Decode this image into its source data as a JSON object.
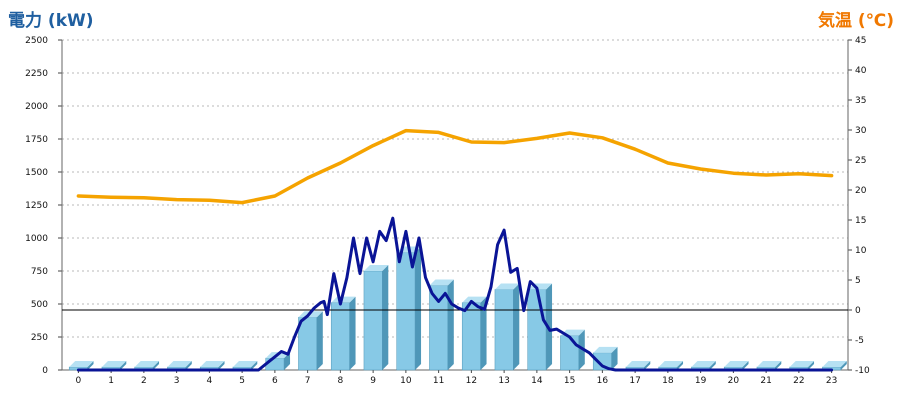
{
  "chart_data": {
    "type": "bar",
    "y_left_label": "電力 (kW)",
    "y_right_label": "気温 (℃)",
    "y_left_lim": [
      0,
      2500
    ],
    "y_left_ticks": [
      0,
      250,
      500,
      750,
      1000,
      1250,
      1500,
      1750,
      2000,
      2250,
      2500
    ],
    "y_right_lim": [
      -10,
      45
    ],
    "y_right_ticks": [
      -10,
      -5,
      0,
      5,
      10,
      15,
      20,
      25,
      30,
      35,
      40,
      45
    ],
    "x_ticks": [
      "0",
      "1",
      "2",
      "3",
      "4",
      "5",
      "6",
      "7",
      "8",
      "9",
      "10",
      "11",
      "12",
      "13",
      "14",
      "15",
      "16",
      "17",
      "18",
      "19",
      "20",
      "21",
      "22",
      "23"
    ],
    "grid": true,
    "colors": {
      "bars": "#87c9e6",
      "bars_dark": "#4f97b8",
      "power_line": "#0a1496",
      "temp_line": "#f5a300",
      "zero_line": "#000000"
    },
    "series": [
      {
        "kind": "bar",
        "axis": "left",
        "values": [
          0,
          0,
          0,
          0,
          0,
          0,
          90,
          400,
          510,
          750,
          890,
          640,
          510,
          610,
          610,
          260,
          130,
          0,
          0,
          0,
          0,
          0,
          0,
          0
        ]
      },
      {
        "kind": "line",
        "axis": "left",
        "x": [
          0,
          1,
          2,
          3,
          4,
          5,
          5.5,
          5.8,
          6.0,
          6.2,
          6.4,
          6.6,
          6.8,
          7.0,
          7.2,
          7.4,
          7.5,
          7.6,
          7.8,
          8.0,
          8.2,
          8.4,
          8.6,
          8.8,
          9.0,
          9.2,
          9.4,
          9.6,
          9.8,
          10.0,
          10.2,
          10.4,
          10.6,
          10.8,
          11.0,
          11.2,
          11.4,
          11.6,
          11.8,
          12.0,
          12.2,
          12.4,
          12.6,
          12.8,
          13.0,
          13.2,
          13.4,
          13.6,
          13.8,
          14.0,
          14.2,
          14.4,
          14.6,
          14.8,
          15.0,
          15.2,
          15.4,
          15.6,
          15.8,
          16.0,
          16.2,
          16.4,
          16.6,
          16.8,
          17.0,
          18,
          19,
          20,
          21,
          22,
          23
        ],
        "values": [
          0,
          0,
          0,
          0,
          0,
          0,
          0,
          60,
          100,
          140,
          120,
          250,
          370,
          410,
          470,
          510,
          520,
          420,
          730,
          500,
          700,
          1000,
          730,
          1000,
          820,
          1050,
          980,
          1150,
          820,
          1050,
          780,
          1000,
          700,
          580,
          520,
          580,
          500,
          470,
          450,
          520,
          480,
          460,
          630,
          950,
          1060,
          740,
          770,
          450,
          670,
          620,
          380,
          300,
          310,
          280,
          250,
          190,
          160,
          130,
          80,
          30,
          10,
          0,
          0,
          0,
          0,
          0,
          0,
          0,
          0,
          0,
          0
        ]
      },
      {
        "kind": "line",
        "axis": "right",
        "x": [
          0,
          1,
          2,
          3,
          4,
          5,
          6,
          7,
          8,
          9,
          10,
          11,
          12,
          13,
          14,
          15,
          16,
          17,
          18,
          19,
          20,
          21,
          22,
          23
        ],
        "values": [
          19.0,
          18.8,
          18.7,
          18.4,
          18.3,
          17.9,
          19.0,
          22.0,
          24.5,
          27.4,
          29.9,
          29.6,
          28.0,
          27.9,
          28.6,
          29.5,
          28.7,
          26.8,
          24.5,
          23.5,
          22.8,
          22.5,
          22.7,
          22.4
        ]
      }
    ]
  }
}
